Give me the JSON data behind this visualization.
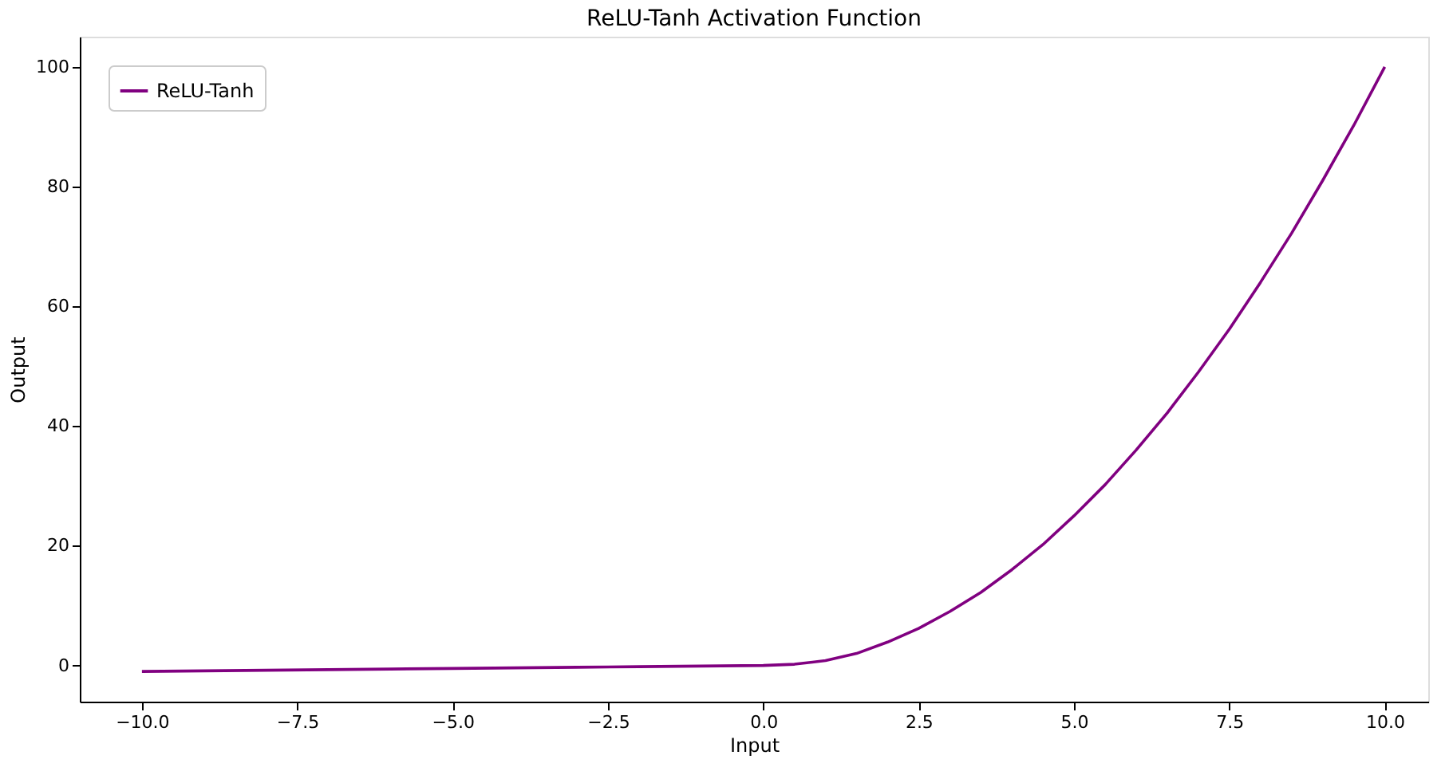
{
  "chart_data": {
    "type": "line",
    "title": "ReLU-Tanh Activation Function",
    "xlabel": "Input",
    "ylabel": "Output",
    "x": [
      -10,
      -9,
      -8,
      -7,
      -6,
      -5,
      -4,
      -3,
      -2,
      -1,
      0,
      0.5,
      1,
      1.5,
      2,
      2.5,
      3,
      3.5,
      4,
      4.5,
      5,
      5.5,
      6,
      6.5,
      7,
      7.5,
      8,
      8.5,
      9,
      9.5,
      10
    ],
    "series": [
      {
        "name": "ReLU-Tanh",
        "color": "#800080",
        "values": [
          -1,
          -0.9,
          -0.8,
          -0.7,
          -0.6,
          -0.5,
          -0.4,
          -0.3,
          -0.2,
          -0.1,
          0,
          0.2,
          0.8,
          2.0,
          3.9,
          6.2,
          9,
          12.2,
          16,
          20.2,
          25,
          30.2,
          36,
          42.2,
          49,
          56.2,
          64,
          72.2,
          81,
          90.2,
          100
        ]
      }
    ],
    "xlim": [
      -11,
      10.7
    ],
    "ylim": [
      -6.05,
      105.05
    ],
    "xticks": [
      {
        "value": -10,
        "label": "−10.0"
      },
      {
        "value": -7.5,
        "label": "−7.5"
      },
      {
        "value": -5,
        "label": "−5.0"
      },
      {
        "value": -2.5,
        "label": "−2.5"
      },
      {
        "value": 0,
        "label": "0.0"
      },
      {
        "value": 2.5,
        "label": "2.5"
      },
      {
        "value": 5,
        "label": "5.0"
      },
      {
        "value": 7.5,
        "label": "7.5"
      },
      {
        "value": 10,
        "label": "10.0"
      }
    ],
    "yticks": [
      0,
      20,
      40,
      60,
      80,
      100
    ],
    "legend": "top left",
    "grid": false,
    "marker": "none",
    "line_style": "solid"
  }
}
